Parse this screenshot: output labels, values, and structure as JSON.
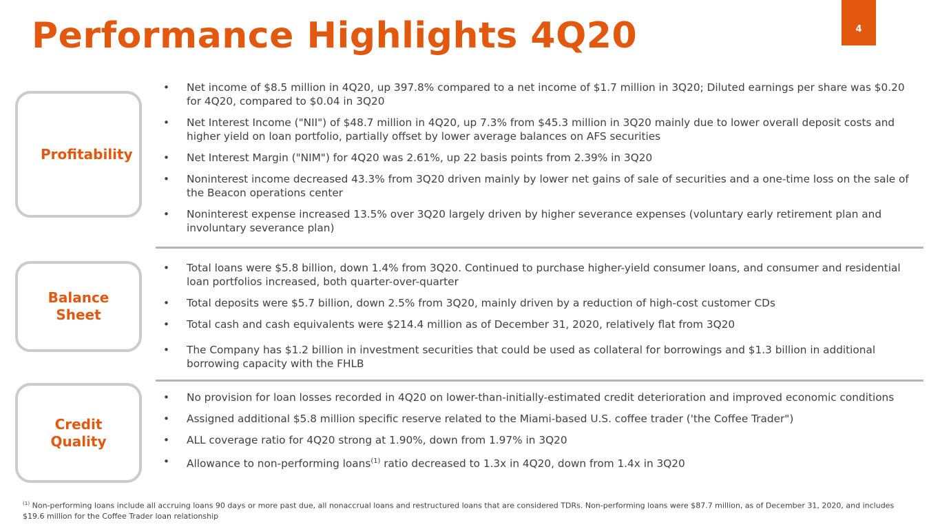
{
  "header": {
    "title": "Performance Highlights 4Q20",
    "page_number": "4"
  },
  "sections": [
    {
      "label": "Profitability",
      "bullets": [
        {
          "text": "Net income of $8.5 million in 4Q20, up 397.8% compared to a net income of $1.7 million in 3Q20; Diluted earnings per share was $0.20 for 4Q20, compared to $0.04 in 3Q20"
        },
        {
          "text": "Net Interest Income (\"NII\") of $48.7 million in 4Q20, up 7.3% from $45.3 million in 3Q20 mainly due to lower overall deposit costs and higher yield on loan portfolio, partially offset by lower average balances on AFS securities"
        },
        {
          "text": "Net Interest Margin (\"NIM\") for 4Q20 was 2.61%, up 22 basis points from 2.39% in 3Q20"
        },
        {
          "text": "Noninterest income decreased 43.3% from 3Q20 driven mainly by lower net gains of sale of securities and a one-time loss on the sale of the Beacon operations center"
        },
        {
          "text": "Noninterest expense increased 13.5% over 3Q20 largely driven by higher severance expenses (voluntary early retirement plan and involuntary severance plan)"
        }
      ]
    },
    {
      "label": "Balance Sheet",
      "bullets": [
        {
          "text": "Total loans were $5.8 billion, down 1.4% from 3Q20. Continued to purchase higher-yield consumer loans, and consumer and residential loan portfolios increased, both quarter-over-quarter"
        },
        {
          "text": "Total deposits were $5.7 billion, down 2.5% from 3Q20, mainly driven by a reduction of high-cost customer CDs"
        },
        {
          "text": "Total cash and cash equivalents were $214.4 million as of December 31, 2020, relatively flat from 3Q20"
        },
        {
          "text": "The Company has $1.2 billion in investment securities that could be used as collateral for borrowings and $1.3 billion in additional borrowing capacity with the FHLB"
        }
      ]
    },
    {
      "label": "Credit Quality",
      "bullets": [
        {
          "text": "No provision for loan losses recorded in 4Q20 on lower-than-initially-estimated credit deterioration and improved economic conditions"
        },
        {
          "text": "Assigned additional $5.8 million specific reserve related to the Miami-based U.S. coffee trader ('the Coffee Trader\")"
        },
        {
          "text": "ALL coverage ratio for 4Q20 strong at 1.90%, down from 1.97% in 3Q20"
        },
        {
          "text": "Allowance to non-performing loans",
          "sup": "(1)",
          "rest": " ratio decreased to 1.3x in 4Q20, down from 1.4x in 3Q20"
        }
      ]
    }
  ],
  "footnote": {
    "marker": "(1)",
    "text": " Non-performing loans include all accruing loans 90 days or more past due, all nonaccrual loans and restructured loans that are considered TDRs. Non-performing loans were $87.7 million, as of December 31, 2020, and includes $19.6 million for the Coffee Trader loan relationship"
  }
}
